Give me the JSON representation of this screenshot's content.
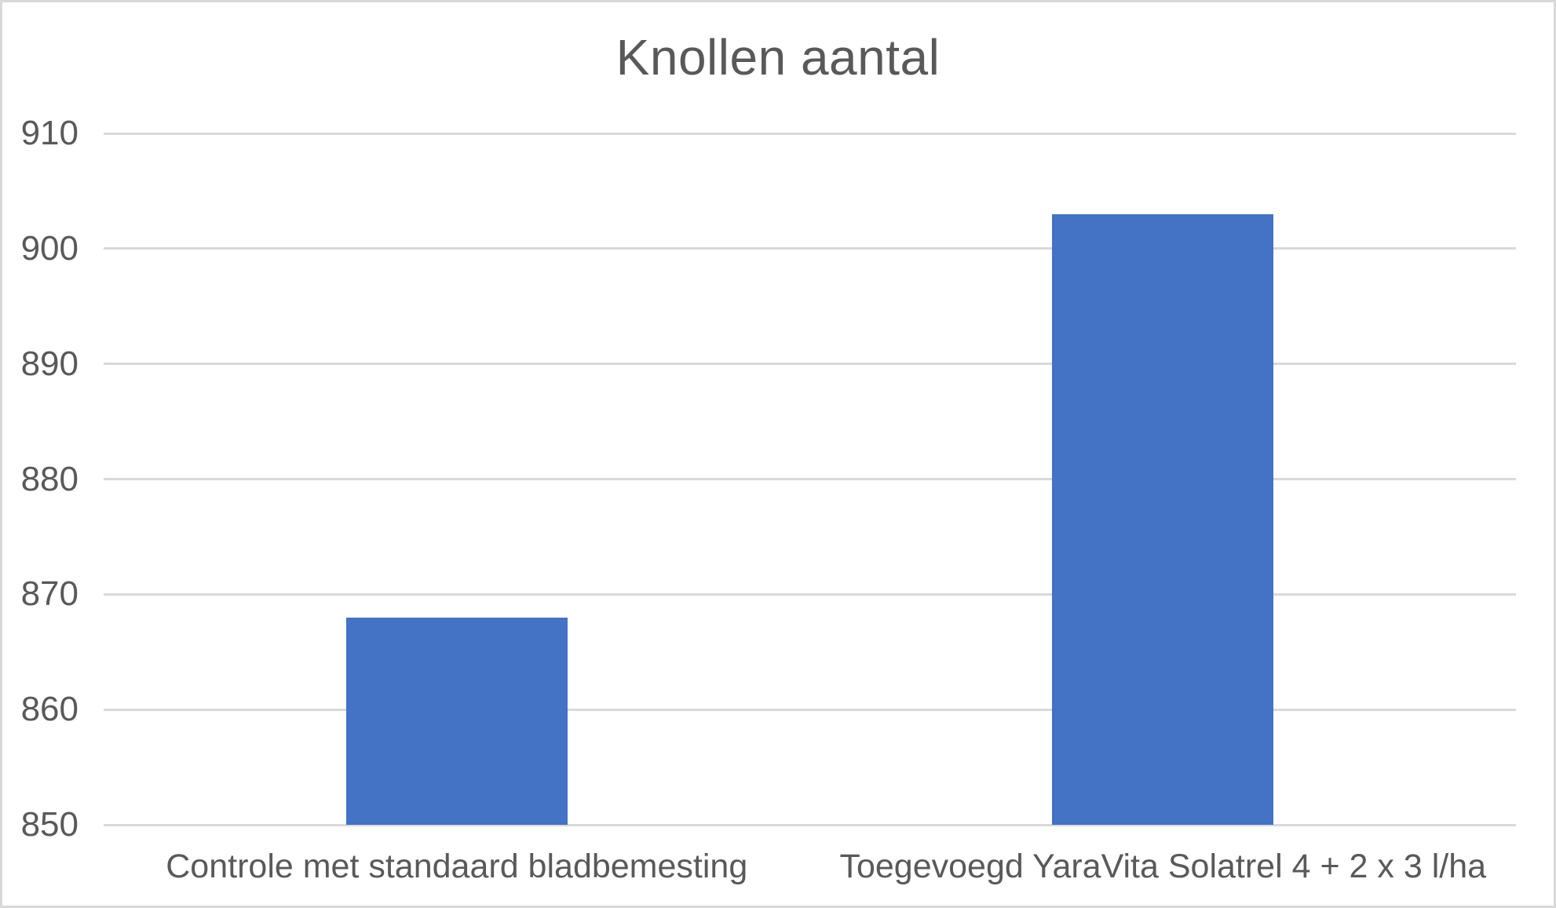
{
  "title": "Knollen aantal",
  "colors": {
    "bar": "#4472C4",
    "text": "#595959",
    "gridline": "#D9D9D9",
    "border": "#D9D9D9",
    "background": "#FFFFFF"
  },
  "chart_data": {
    "type": "bar",
    "title": "Knollen aantal",
    "categories": [
      "Controle met standaard bladbemesting",
      "Toegevoegd YaraVita Solatrel 4 + 2 x 3 l/ha"
    ],
    "values": [
      868,
      903
    ],
    "series": [
      {
        "name": "Knollen aantal",
        "values": [
          868,
          903
        ]
      }
    ],
    "xlabel": "",
    "ylabel": "",
    "ylim": [
      850,
      910
    ],
    "yticks": [
      850,
      860,
      870,
      880,
      890,
      900,
      910
    ],
    "ytick_step": 10,
    "grid": true,
    "legend": false,
    "bar_color": "#4472C4"
  }
}
